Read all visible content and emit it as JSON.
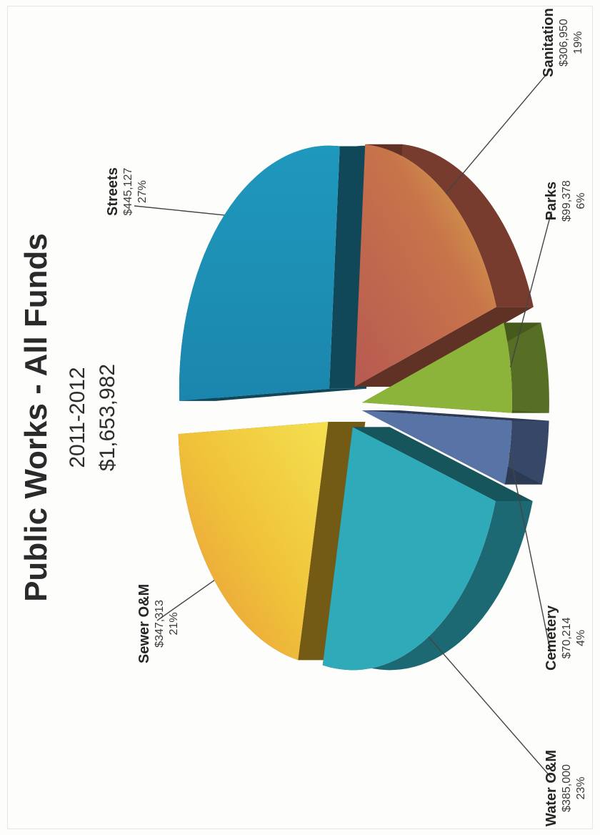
{
  "title": "Public Works - All Funds",
  "subtitle_years": "2011-2012",
  "subtitle_total": "$1,653,982",
  "chart_data": {
    "type": "pie",
    "title": "Public Works - All Funds",
    "subtitle": "2011-2012",
    "total": "$1,653,982",
    "slices": [
      {
        "label": "Streets",
        "amount": "$445,127",
        "pct": "27%",
        "value": 445127,
        "color": "#1f8fb3"
      },
      {
        "label": "Sanitation",
        "amount": "$306,950",
        "pct": "19%",
        "value": 306950,
        "color": "#c0614a"
      },
      {
        "label": "Parks",
        "amount": "$99,378",
        "pct": "6%",
        "value": 99378,
        "color": "#8cb33a"
      },
      {
        "label": "Cemetery",
        "amount": "$70,214",
        "pct": "4%",
        "value": 70214,
        "color": "#5873a6"
      },
      {
        "label": "Water O&M",
        "amount": "$385,000",
        "pct": "23%",
        "value": 385000,
        "color": "#2eaab9"
      },
      {
        "label": "Sewer O&M",
        "amount": "$347,313",
        "pct": "21%",
        "value": 347313,
        "color": "#e6b52a"
      }
    ],
    "legend": "none",
    "style": "3d-exploded"
  }
}
